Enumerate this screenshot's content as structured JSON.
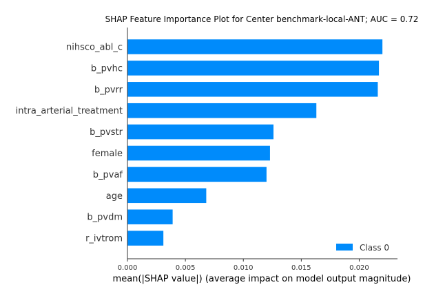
{
  "chart_data": {
    "type": "bar",
    "orientation": "horizontal",
    "title": "SHAP Feature Importance Plot for Center benchmark-local-ANT; AUC = 0.72",
    "xlabel": "mean(|SHAP value|) (average impact on model output magnitude)",
    "ylabel": "",
    "categories": [
      "nihsco_abl_c",
      "b_pvhc",
      "b_pvrr",
      "intra_arterial_treatment",
      "b_pvstr",
      "female",
      "b_pvaf",
      "age",
      "b_pvdm",
      "r_ivtrom"
    ],
    "series": [
      {
        "name": "Class 0",
        "color": "#008bfb",
        "values": [
          0.022,
          0.0217,
          0.0216,
          0.0163,
          0.0126,
          0.0123,
          0.012,
          0.0068,
          0.0039,
          0.0031
        ]
      }
    ],
    "xlim": [
      0,
      0.0233
    ],
    "xticks": [
      "0.000",
      "0.005",
      "0.010",
      "0.015",
      "0.020"
    ],
    "legend_position": "bottom-right",
    "grid": false
  }
}
